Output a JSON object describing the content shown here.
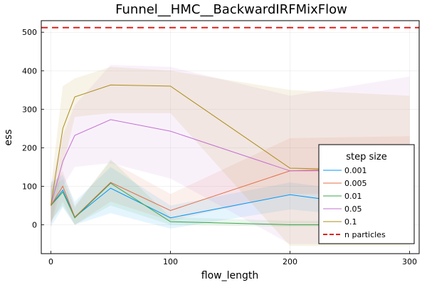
{
  "chart_data": {
    "type": "line",
    "title": "Funnel__HMC__BackwardIRFMixFlow",
    "xlabel": "flow_length",
    "ylabel": "ess",
    "xlim": [
      -8,
      308
    ],
    "ylim": [
      -75,
      530
    ],
    "xticks": [
      0,
      100,
      200,
      300
    ],
    "yticks": [
      0,
      100,
      200,
      300,
      400,
      500
    ],
    "grid": true,
    "x": [
      0,
      10,
      20,
      50,
      100,
      200,
      300
    ],
    "legend": {
      "title": "step size",
      "position": "bottom-right"
    },
    "series": [
      {
        "name": "0.001",
        "color": "#009AFA",
        "values": [
          50,
          90,
          20,
          95,
          18,
          78,
          37
        ],
        "lower": [
          -5,
          45,
          0,
          30,
          -10,
          40,
          10
        ],
        "upper": [
          110,
          130,
          60,
          150,
          50,
          110,
          70
        ]
      },
      {
        "name": "0.005",
        "color": "#E36F47",
        "values": [
          50,
          100,
          20,
          110,
          37,
          140,
          150
        ],
        "lower": [
          5,
          60,
          0,
          60,
          10,
          80,
          80
        ],
        "upper": [
          100,
          140,
          50,
          165,
          80,
          225,
          230
        ]
      },
      {
        "name": "0.01",
        "color": "#3EA44E",
        "values": [
          50,
          85,
          18,
          108,
          8,
          0,
          0
        ],
        "lower": [
          10,
          50,
          0,
          50,
          0,
          -5,
          -5
        ],
        "upper": [
          90,
          120,
          45,
          170,
          20,
          10,
          10
        ]
      },
      {
        "name": "0.05",
        "color": "#C371D2",
        "values": [
          50,
          165,
          232,
          273,
          243,
          140,
          140
        ],
        "lower": [
          0,
          100,
          150,
          160,
          120,
          -50,
          -50
        ],
        "upper": [
          100,
          230,
          310,
          415,
          410,
          335,
          385
        ]
      },
      {
        "name": "0.1",
        "color": "#AC8D18",
        "values": [
          50,
          250,
          332,
          363,
          360,
          147,
          140
        ],
        "lower": [
          -5,
          150,
          280,
          290,
          290,
          -55,
          -55
        ],
        "upper": [
          100,
          360,
          380,
          410,
          400,
          350,
          335
        ]
      }
    ],
    "reference_line": {
      "name": "n particles",
      "y": 512,
      "color": "#E0201B",
      "style": "dashed"
    }
  }
}
